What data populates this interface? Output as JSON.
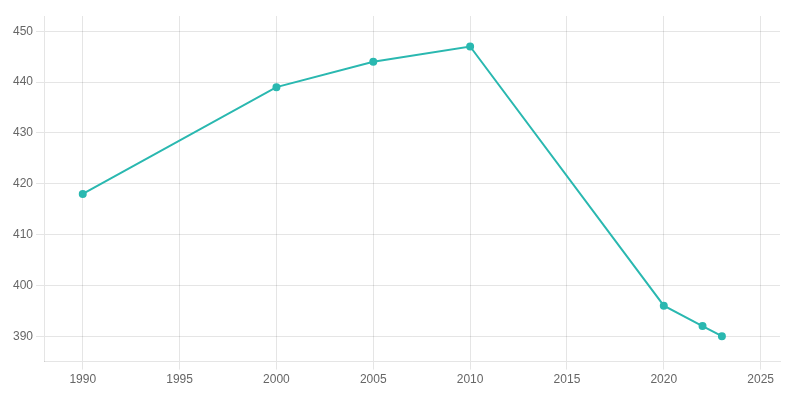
{
  "chart_data": {
    "type": "line",
    "x": [
      1990,
      2000,
      2005,
      2010,
      2020,
      2022,
      2023
    ],
    "values": [
      418,
      439,
      444,
      447,
      396,
      392,
      390
    ],
    "color": "#2ab8b0",
    "marker": "circle",
    "xlim": [
      1988,
      2026
    ],
    "ylim": [
      385,
      453
    ],
    "xticks": [
      1990,
      1995,
      2000,
      2005,
      2010,
      2015,
      2020,
      2025
    ],
    "yticks": [
      390,
      400,
      410,
      420,
      430,
      440,
      450
    ],
    "grid": true
  }
}
